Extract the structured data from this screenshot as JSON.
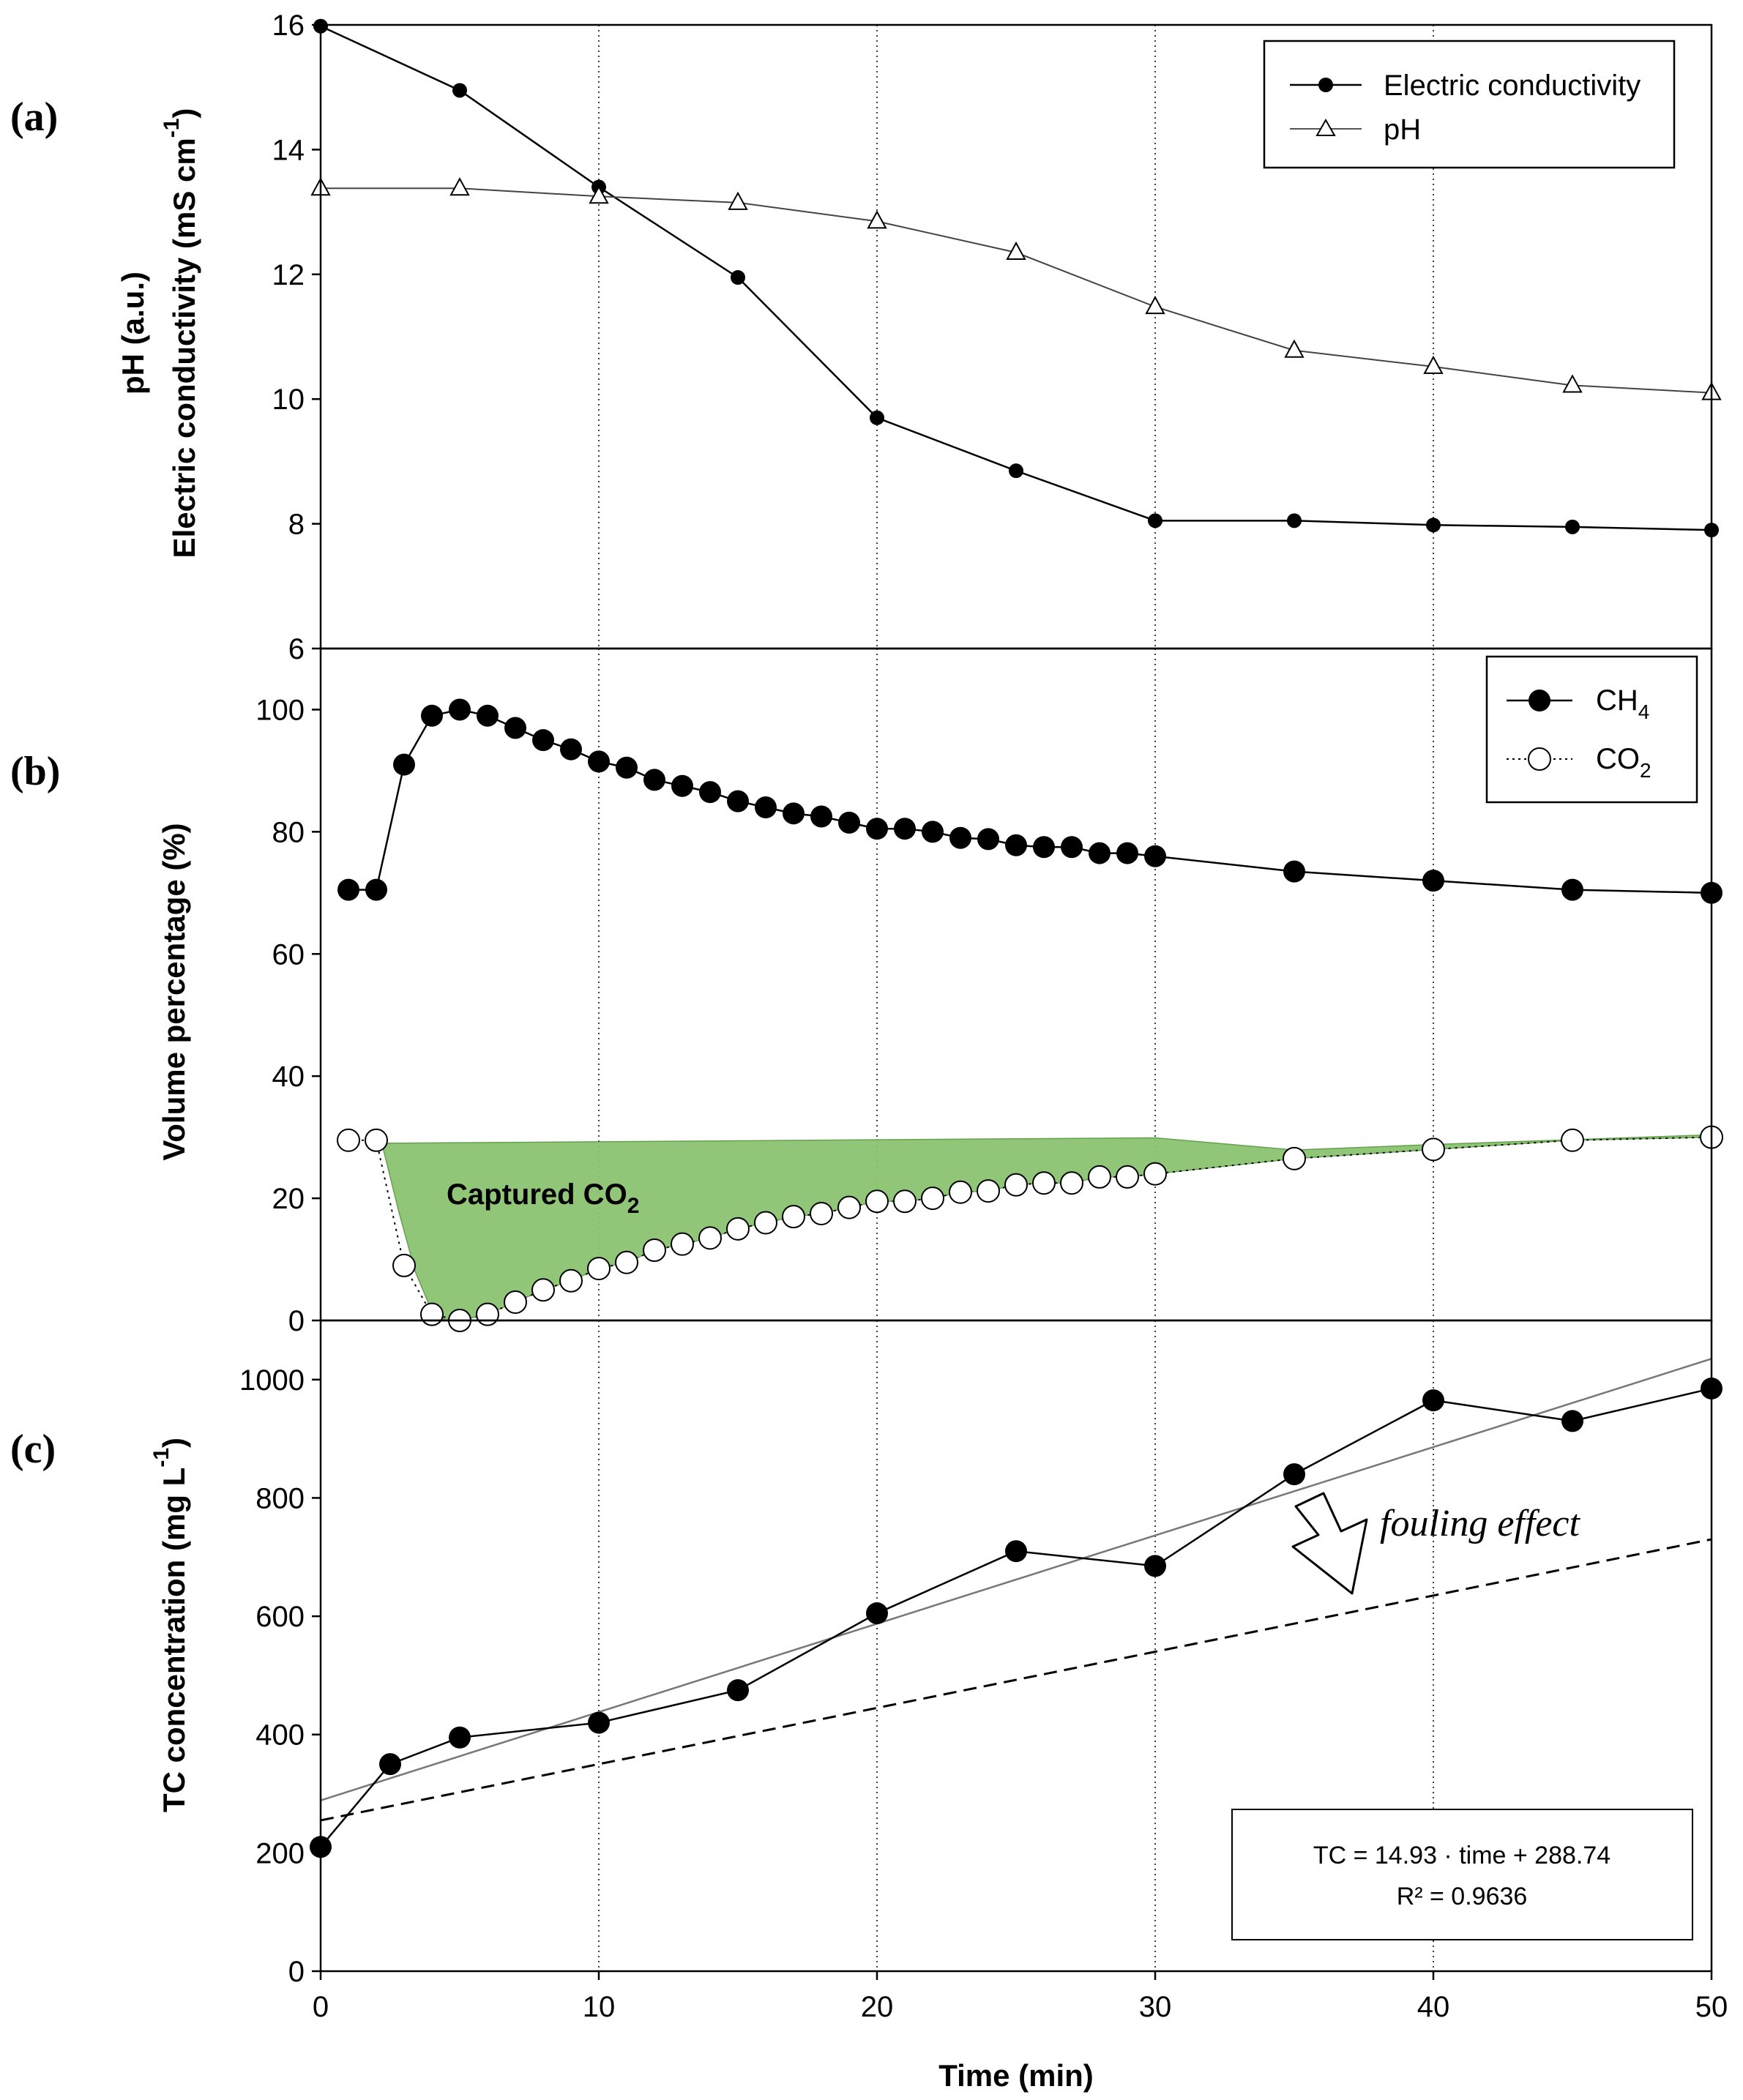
{
  "chart_data": [
    {
      "panel": "(a)",
      "type": "line",
      "ylabel_line1": "pH (a.u.)",
      "ylabel_line2": "Electric conductivity (mS cm",
      "ylabel_sup": "-1",
      "ylabel_close": ")",
      "ylim": [
        6,
        16
      ],
      "yticks": [
        "6",
        "8",
        "10",
        "12",
        "14",
        "16"
      ],
      "xlim": [
        0,
        50
      ],
      "legend_position": "top-right",
      "series": [
        {
          "name": "Electric conductivity",
          "marker": "filled-circle",
          "x": [
            0,
            5,
            10,
            15,
            20,
            25,
            30,
            35,
            40,
            45,
            50
          ],
          "y": [
            15.98,
            14.95,
            13.4,
            11.95,
            9.7,
            8.85,
            8.05,
            8.05,
            7.98,
            7.95,
            7.9
          ]
        },
        {
          "name": "pH",
          "marker": "open-triangle",
          "x": [
            0,
            5,
            10,
            15,
            20,
            25,
            30,
            35,
            40,
            45,
            50
          ],
          "y": [
            13.38,
            13.38,
            13.25,
            13.15,
            12.85,
            12.35,
            11.48,
            10.78,
            10.52,
            10.22,
            10.1
          ]
        }
      ]
    },
    {
      "panel": "(b)",
      "type": "scatter",
      "ylabel": "Volume percentage (%)",
      "ylim": [
        0,
        110
      ],
      "yticks": [
        "0",
        "20",
        "40",
        "60",
        "80",
        "100"
      ],
      "xlim": [
        0,
        50
      ],
      "legend_position": "top-right",
      "annotation_main": "Captured CO",
      "annotation_sub": "2",
      "fill_color": "#8cc472",
      "series": [
        {
          "name_main": "CH",
          "name_sub": "4",
          "marker": "filled-circle",
          "x": [
            1,
            2,
            3,
            4,
            5,
            6,
            7,
            8,
            9,
            10,
            11,
            12,
            13,
            14,
            15,
            16,
            17,
            18,
            19,
            20,
            21,
            22,
            23,
            24,
            25,
            26,
            27,
            28,
            29,
            30,
            35,
            40,
            45,
            50
          ],
          "y": [
            70.5,
            70.5,
            91,
            99,
            100,
            99,
            97,
            95,
            93.5,
            91.5,
            90.5,
            88.5,
            87.5,
            86.5,
            85,
            84,
            83,
            82.5,
            81.5,
            80.5,
            80.5,
            80,
            79,
            78.8,
            77.8,
            77.5,
            77.5,
            76.5,
            76.5,
            76,
            73.5,
            72,
            70.5,
            70
          ]
        },
        {
          "name_main": "CO",
          "name_sub": "2",
          "marker": "open-circle",
          "x": [
            1,
            2,
            3,
            4,
            5,
            6,
            7,
            8,
            9,
            10,
            11,
            12,
            13,
            14,
            15,
            16,
            17,
            18,
            19,
            20,
            21,
            22,
            23,
            24,
            25,
            26,
            27,
            28,
            29,
            30,
            35,
            40,
            45,
            50
          ],
          "y": [
            29.5,
            29.5,
            9,
            1,
            0,
            1,
            3,
            5,
            6.5,
            8.5,
            9.5,
            11.5,
            12.5,
            13.5,
            15,
            16,
            17,
            17.5,
            18.5,
            19.5,
            19.5,
            20,
            21,
            21.2,
            22.2,
            22.5,
            22.5,
            23.5,
            23.5,
            24,
            26.5,
            28,
            29.5,
            30
          ]
        }
      ]
    },
    {
      "panel": "(c)",
      "type": "line",
      "ylabel_main": "TC concentration (mg L",
      "ylabel_sup": "-1",
      "ylabel_close": ")",
      "ylim": [
        0,
        1100
      ],
      "yticks": [
        "0",
        "200",
        "400",
        "600",
        "800",
        "1000"
      ],
      "xlim": [
        0,
        50
      ],
      "xticks": [
        "0",
        "10",
        "20",
        "30",
        "40",
        "50"
      ],
      "xlabel": "Time (min)",
      "annotation": "fouling effect",
      "equation_line1": "TC = 14.93 · time + 288.74",
      "equation_line2": "R² = 0.9636",
      "series": [
        {
          "name": "TC",
          "marker": "filled-circle",
          "x": [
            0,
            2.5,
            5,
            10,
            15,
            20,
            25,
            30,
            35,
            40,
            45,
            50
          ],
          "y": [
            210,
            350,
            395,
            420,
            475,
            605,
            710,
            685,
            840,
            965,
            930,
            985
          ]
        }
      ],
      "fit_line": {
        "name": "Linear fit",
        "slope": 14.93,
        "intercept": 288.74
      },
      "reference_line": {
        "name": "Fouled reference",
        "x": [
          0,
          50
        ],
        "y": [
          255,
          730
        ]
      }
    }
  ]
}
